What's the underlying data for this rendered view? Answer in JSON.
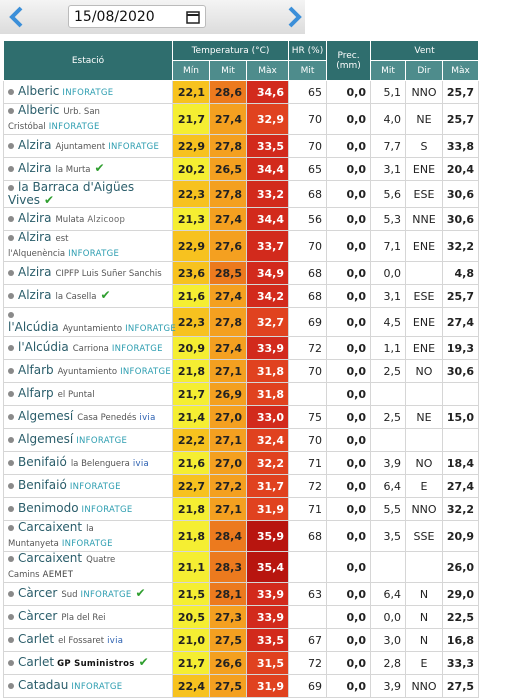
{
  "header": {
    "date": "15/08/2020"
  },
  "table": {
    "group_headers": [
      "Estació",
      "Temperatura (°C)",
      "HR (%)",
      "Prec. (mm)",
      "Vent"
    ],
    "sub_headers": [
      "Mín",
      "Mit",
      "Màx",
      "Mit",
      "Mit",
      "Dir",
      "Màx"
    ],
    "rows": [
      {
        "name": "Alberic",
        "badge": "INFORATGE",
        "values": [
          "22,1",
          "28,6",
          "34,6",
          "65",
          "0,0",
          "5,1",
          "NNO",
          "25,7"
        ]
      },
      {
        "name": "Alberic",
        "place": "Urb. San Cristóbal",
        "badge": "INFORATGE",
        "values": [
          "21,7",
          "27,4",
          "32,9",
          "70",
          "0,0",
          "4,0",
          "NE",
          "25,7"
        ]
      },
      {
        "name": "Alzira",
        "place": "Ajuntament",
        "badge": "INFORATGE",
        "values": [
          "22,9",
          "27,8",
          "33,5",
          "70",
          "0,0",
          "7,7",
          "S",
          "33,8"
        ]
      },
      {
        "name": "Alzira",
        "place": "la Murta",
        "verified": true,
        "values": [
          "20,2",
          "26,5",
          "34,4",
          "65",
          "0,0",
          "3,1",
          "ENE",
          "20,4"
        ]
      },
      {
        "name": "la Barraca d'Aigües Vives",
        "verified": true,
        "values": [
          "22,3",
          "27,8",
          "33,2",
          "68",
          "0,0",
          "5,6",
          "ESE",
          "30,6"
        ]
      },
      {
        "name": "Alzira",
        "place": "Mulata",
        "badge": "Alzicoop",
        "values": [
          "21,3",
          "27,4",
          "34,4",
          "56",
          "0,0",
          "5,3",
          "NNE",
          "30,6"
        ]
      },
      {
        "name": "Alzira",
        "place": "est l'Alquenència",
        "badge": "INFORATGE",
        "values": [
          "22,9",
          "27,6",
          "33,7",
          "70",
          "0,0",
          "7,1",
          "ENE",
          "32,2"
        ]
      },
      {
        "name": "Alzira",
        "place": "CIPFP Luis Suñer Sanchis",
        "values": [
          "23,6",
          "28,5",
          "34,9",
          "68",
          "0,0",
          "0,0",
          null,
          "4,8"
        ]
      },
      {
        "name": "Alzira",
        "place": "la Casella",
        "verified": true,
        "values": [
          "21,6",
          "27,4",
          "34,2",
          "68",
          "0,0",
          "3,1",
          "ESE",
          "25,7"
        ]
      },
      {
        "name": "l'Alcúdia",
        "place": "Ayuntamiento",
        "badge": "INFORATGE",
        "values": [
          "22,3",
          "27,8",
          "32,7",
          "69",
          "0,0",
          "4,5",
          "ENE",
          "27,4"
        ]
      },
      {
        "name": "l'Alcúdia",
        "place": "Carriona",
        "badge": "INFORATGE",
        "values": [
          "20,9",
          "27,4",
          "33,9",
          "72",
          "0,0",
          "1,1",
          "ENE",
          "19,3"
        ]
      },
      {
        "name": "Alfarb",
        "place": "Ayuntamiento",
        "badge": "INFORATGE",
        "values": [
          "21,8",
          "27,1",
          "31,8",
          "70",
          "0,0",
          "2,5",
          "NO",
          "30,6"
        ]
      },
      {
        "name": "Alfarp",
        "place": "el Puntal",
        "values": [
          "21,7",
          "26,9",
          "31,8",
          null,
          "0,0",
          null,
          null,
          null
        ]
      },
      {
        "name": "Algemesí",
        "place": "Casa Penedés",
        "badge": "ivia",
        "values": [
          "21,4",
          "27,0",
          "33,0",
          "75",
          "0,0",
          "2,5",
          "NE",
          "15,0"
        ]
      },
      {
        "name": "Algemesí",
        "badge": "INFORATGE",
        "values": [
          "22,2",
          "27,1",
          "32,4",
          "70",
          "0,0",
          null,
          null,
          null
        ]
      },
      {
        "name": "Benifaió",
        "place": "la Belenguera",
        "badge": "ivia",
        "values": [
          "21,6",
          "27,0",
          "32,2",
          "71",
          "0,0",
          "3,9",
          "NO",
          "18,4"
        ]
      },
      {
        "name": "Benifaió",
        "badge": "INFORATGE",
        "values": [
          "22,7",
          "27,2",
          "31,7",
          "72",
          "0,0",
          "6,4",
          "E",
          "27,4"
        ]
      },
      {
        "name": "Benimodo",
        "badge": "INFORATGE",
        "values": [
          "21,8",
          "27,1",
          "31,9",
          "71",
          "0,0",
          "5,5",
          "NNO",
          "32,2"
        ]
      },
      {
        "name": "Carcaixent",
        "place": "la Muntanyeta",
        "badge": "INFORATGE",
        "values": [
          "21,8",
          "28,4",
          "35,9",
          "68",
          "0,0",
          "3,5",
          "SSE",
          "20,9"
        ]
      },
      {
        "name": "Carcaixent",
        "place": "Quatre Camins",
        "badge": "AEMET",
        "values": [
          "21,1",
          "28,3",
          "35,4",
          null,
          "0,0",
          null,
          null,
          "26,0"
        ]
      },
      {
        "name": "Càrcer",
        "place": "Sud",
        "badge": "INFORATGE",
        "verified": true,
        "values": [
          "21,5",
          "28,1",
          "33,9",
          "63",
          "0,0",
          "6,4",
          "N",
          "29,0"
        ]
      },
      {
        "name": "Càrcer",
        "place": "Pla del Rei",
        "values": [
          "20,5",
          "27,3",
          "33,9",
          null,
          "0,0",
          "0,0",
          "N",
          "22,5"
        ]
      },
      {
        "name": "Carlet",
        "place": "el Fossaret",
        "badge": "ivia",
        "values": [
          "21,0",
          "27,5",
          "33,5",
          "67",
          "0,0",
          "3,0",
          "N",
          "16,8"
        ]
      },
      {
        "name": "Carlet",
        "badge": "GP Suministros",
        "verified": true,
        "values": [
          "21,7",
          "26,6",
          "31,5",
          "72",
          "0,0",
          "2,8",
          "E",
          "33,3"
        ]
      },
      {
        "name": "Catadau",
        "badge": "INFORATGE",
        "values": [
          "22,4",
          "27,5",
          "31,9",
          "69",
          "0,0",
          "3,9",
          "NNO",
          "27,5"
        ]
      }
    ]
  }
}
